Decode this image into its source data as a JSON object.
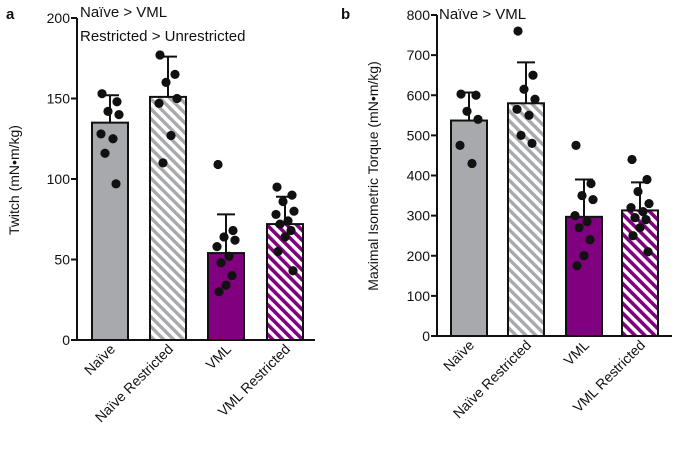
{
  "chart_data": [
    {
      "panel": "a",
      "type": "bar",
      "ylabel": "Twitch (mN•m/kg)",
      "ylim": [
        0,
        200
      ],
      "yticks": [
        0,
        50,
        100,
        150,
        200
      ],
      "annotations": [
        "Naïve > VML",
        "Restricted > Unrestricted"
      ],
      "categories": [
        "Naïve",
        "Naïve Restricted",
        "VML",
        "VML Restricted"
      ],
      "values": [
        135,
        151,
        54,
        72
      ],
      "sd": [
        17,
        25,
        24,
        17
      ],
      "points": [
        [
          153,
          148,
          142,
          140,
          128,
          125,
          116,
          97
        ],
        [
          177,
          165,
          160,
          150,
          147,
          127,
          110
        ],
        [
          109,
          68,
          64,
          62,
          58,
          52,
          48,
          40,
          34,
          30
        ],
        [
          95,
          90,
          86,
          80,
          78,
          74,
          72,
          68,
          64,
          55,
          43
        ]
      ]
    },
    {
      "panel": "b",
      "type": "bar",
      "ylabel": "Maximal Isometric Torque (mN•m/kg)",
      "ylim": [
        0,
        800
      ],
      "yticks": [
        0,
        100,
        200,
        300,
        400,
        500,
        600,
        700,
        800
      ],
      "annotations": [
        "Naïve > VML"
      ],
      "categories": [
        "Naïve",
        "Naïve Restricted",
        "VML",
        "VML Restricted"
      ],
      "values": [
        537,
        580,
        297,
        313
      ],
      "sd": [
        70,
        102,
        93,
        70
      ],
      "points": [
        [
          603,
          600,
          560,
          540,
          475,
          430
        ],
        [
          760,
          650,
          615,
          590,
          565,
          550,
          500,
          480
        ],
        [
          475,
          380,
          350,
          340,
          300,
          285,
          270,
          240,
          200,
          175
        ],
        [
          440,
          390,
          360,
          330,
          320,
          310,
          295,
          290,
          270,
          250,
          210
        ]
      ]
    }
  ],
  "style": {
    "naive_fill": "#a7a9ac",
    "vml_fill": "#800080",
    "hatch_gray": "#a7a9ac",
    "hatch_purple": "#800080",
    "ink": "#111111"
  }
}
